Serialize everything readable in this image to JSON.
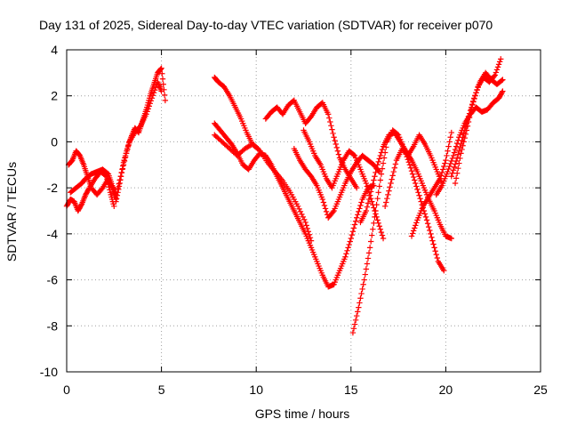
{
  "chart_data": {
    "type": "scatter",
    "title": "Day 131 of 2025, Sidereal Day-to-day VTEC variation (SDTVAR) for receiver p070",
    "xlabel": "GPS time / hours",
    "ylabel": "SDTVAR / TECUs",
    "xlim": [
      0,
      25
    ],
    "ylim": [
      -10,
      4
    ],
    "xticks": [
      0,
      5,
      10,
      15,
      20,
      25
    ],
    "yticks": [
      -10,
      -8,
      -6,
      -4,
      -2,
      0,
      2,
      4
    ],
    "xtick_labels": [
      "0",
      "5",
      "10",
      "15",
      "20",
      "25"
    ],
    "ytick_labels": [
      "-10",
      "-8",
      "-6",
      "-4",
      "-2",
      "0",
      "2",
      "4"
    ],
    "grid": true,
    "marker": "+",
    "color": "#ff0000",
    "series": [
      {
        "x": [
          0.0,
          0.2,
          0.4,
          0.6,
          0.8,
          1.0,
          1.2,
          1.5,
          1.8,
          2.1,
          2.3,
          2.5
        ],
        "y": [
          -2.8,
          -2.5,
          -2.6,
          -3.0,
          -2.7,
          -2.3,
          -2.0,
          -1.6,
          -1.3,
          -1.5,
          -2.2,
          -2.8
        ]
      },
      {
        "x": [
          0.1,
          0.3,
          0.5,
          0.7,
          0.9,
          1.1,
          1.3,
          1.6,
          1.9,
          2.2,
          2.4,
          2.6
        ],
        "y": [
          -1.0,
          -0.8,
          -0.4,
          -0.6,
          -1.0,
          -1.5,
          -2.0,
          -2.3,
          -2.0,
          -1.6,
          -2.0,
          -2.5
        ]
      },
      {
        "x": [
          0.2,
          0.5,
          0.8,
          1.0,
          1.3,
          1.6,
          1.9,
          2.2,
          2.4,
          2.6
        ],
        "y": [
          -2.2,
          -2.0,
          -1.8,
          -1.6,
          -1.4,
          -1.3,
          -1.2,
          -1.4,
          -1.9,
          -2.3
        ]
      },
      {
        "x": [
          2.6,
          2.8,
          3.0,
          3.2,
          3.4,
          3.6,
          3.8,
          4.0,
          4.2,
          4.4,
          4.6,
          4.8,
          5.0,
          5.2
        ],
        "y": [
          -2.6,
          -1.8,
          -0.9,
          -0.3,
          0.2,
          0.6,
          0.4,
          0.9,
          1.4,
          2.0,
          2.5,
          3.0,
          3.2,
          1.8
        ]
      },
      {
        "x": [
          2.7,
          3.0,
          3.3,
          3.6,
          3.9,
          4.2,
          4.5,
          4.8,
          5.0
        ],
        "y": [
          -2.0,
          -1.0,
          0.0,
          0.4,
          0.7,
          1.2,
          1.9,
          2.6,
          2.2
        ]
      },
      {
        "x": [
          7.8,
          8.0,
          8.3,
          8.6,
          8.9,
          9.2,
          9.5,
          9.8,
          10.1
        ],
        "y": [
          2.8,
          2.6,
          2.4,
          2.0,
          1.5,
          1.0,
          0.4,
          -0.1,
          -0.3
        ]
      },
      {
        "x": [
          7.8,
          8.1,
          8.4,
          8.7,
          9.0,
          9.3,
          9.6,
          9.9,
          10.2,
          10.5,
          10.8,
          11.1,
          11.4,
          11.7,
          12.0,
          12.3,
          12.6,
          12.9,
          13.2,
          13.5,
          13.8,
          14.1,
          14.4,
          14.7,
          15.0,
          15.3,
          15.6,
          15.9,
          16.2
        ],
        "y": [
          0.8,
          0.5,
          0.2,
          -0.1,
          -0.5,
          -1.0,
          -1.2,
          -0.8,
          -0.5,
          -0.6,
          -1.0,
          -1.5,
          -2.0,
          -2.5,
          -3.0,
          -3.5,
          -4.0,
          -4.6,
          -5.2,
          -5.8,
          -6.3,
          -6.2,
          -5.6,
          -5.0,
          -4.2,
          -3.3,
          -2.5,
          -2.0,
          -1.9
        ]
      },
      {
        "x": [
          7.8,
          8.2,
          8.6,
          9.0,
          9.4,
          9.8,
          10.2,
          10.6,
          11.0,
          11.4,
          11.8,
          12.2,
          12.6,
          12.9
        ],
        "y": [
          0.3,
          0.0,
          -0.3,
          -0.6,
          -0.3,
          -0.1,
          -0.4,
          -0.9,
          -1.3,
          -1.7,
          -2.2,
          -2.8,
          -3.5,
          -4.3
        ]
      },
      {
        "x": [
          10.5,
          10.8,
          11.1,
          11.4,
          11.7,
          12.0,
          12.3,
          12.6,
          12.9,
          13.2,
          13.5,
          13.8,
          14.1,
          14.4,
          14.7,
          15.0,
          15.3
        ],
        "y": [
          1.0,
          1.3,
          1.5,
          1.2,
          1.6,
          1.8,
          1.3,
          0.8,
          1.1,
          1.5,
          1.7,
          1.2,
          0.2,
          -0.7,
          -1.2,
          -1.6,
          -2.0
        ]
      },
      {
        "x": [
          12.0,
          12.3,
          12.6,
          12.9,
          13.2,
          13.5,
          13.8,
          14.1,
          14.4,
          14.7,
          15.0,
          15.3,
          15.6,
          15.9,
          16.2,
          16.5
        ],
        "y": [
          -0.3,
          -0.8,
          -1.2,
          -1.5,
          -1.9,
          -2.5,
          -3.3,
          -3.0,
          -2.4,
          -1.8,
          -1.3,
          -0.9,
          -0.6,
          -0.8,
          -1.0,
          -1.3
        ]
      },
      {
        "x": [
          12.5,
          12.8,
          13.1,
          13.4,
          13.7,
          14.0,
          14.3,
          14.6,
          14.9,
          15.2,
          15.5,
          15.8,
          16.1,
          16.4,
          16.7
        ],
        "y": [
          0.5,
          0.0,
          -0.6,
          -1.0,
          -1.6,
          -2.0,
          -1.4,
          -0.8,
          -0.4,
          -0.6,
          -1.2,
          -1.8,
          -2.6,
          -3.4,
          -4.2
        ]
      },
      {
        "x": [
          15.1,
          15.4,
          15.7,
          16.0,
          16.3,
          16.6,
          16.9,
          17.2,
          17.5,
          17.8,
          18.1,
          18.4,
          18.7,
          19.0,
          19.3,
          19.6,
          19.9
        ],
        "y": [
          -8.3,
          -7.2,
          -6.0,
          -4.6,
          -3.0,
          -1.4,
          0.0,
          0.5,
          0.3,
          -0.3,
          -1.0,
          -1.8,
          -2.6,
          -3.4,
          -4.3,
          -5.2,
          -5.6
        ]
      },
      {
        "x": [
          15.5,
          15.8,
          16.1,
          16.4,
          16.7,
          17.0,
          17.3,
          17.6,
          17.9,
          18.2,
          18.5,
          18.8,
          19.1,
          19.4,
          19.7,
          20.0,
          20.3
        ],
        "y": [
          -3.5,
          -3.0,
          -2.0,
          -1.0,
          -0.2,
          0.3,
          0.4,
          0.0,
          -0.4,
          -0.8,
          -1.3,
          -1.9,
          -2.5,
          -3.0,
          -3.6,
          -4.1,
          -4.2
        ]
      },
      {
        "x": [
          16.8,
          17.1,
          17.4,
          17.7,
          18.0,
          18.3,
          18.6,
          18.9,
          19.2,
          19.5,
          19.8
        ],
        "y": [
          -2.8,
          -1.8,
          -0.8,
          -0.3,
          -0.6,
          -0.2,
          0.3,
          -0.1,
          -0.6,
          -1.2,
          -1.8
        ]
      },
      {
        "x": [
          18.2,
          18.5,
          18.8,
          19.1,
          19.4,
          19.7,
          20.0,
          20.3
        ],
        "y": [
          -4.1,
          -3.4,
          -2.8,
          -2.4,
          -2.0,
          -1.6,
          -0.8,
          0.4
        ]
      },
      {
        "x": [
          19.5,
          19.8,
          20.1,
          20.4,
          20.7,
          21.0,
          21.3,
          21.6,
          21.9,
          22.2,
          22.5,
          22.8,
          23.0
        ],
        "y": [
          -2.3,
          -1.9,
          -1.3,
          -0.6,
          0.2,
          0.8,
          1.2,
          1.5,
          1.3,
          1.4,
          1.7,
          1.9,
          2.2
        ]
      },
      {
        "x": [
          20.5,
          20.8,
          21.1,
          21.4,
          21.7,
          22.0,
          22.3,
          22.6,
          22.9
        ],
        "y": [
          -1.8,
          -0.5,
          0.5,
          1.6,
          2.4,
          2.8,
          2.6,
          2.9,
          3.6
        ]
      },
      {
        "x": [
          20.3,
          20.6,
          20.9,
          21.2,
          21.5,
          21.8,
          22.1,
          22.4,
          22.7,
          23.0
        ],
        "y": [
          -1.5,
          -0.7,
          0.2,
          1.1,
          1.9,
          2.6,
          3.0,
          2.7,
          2.5,
          2.7
        ]
      }
    ]
  }
}
